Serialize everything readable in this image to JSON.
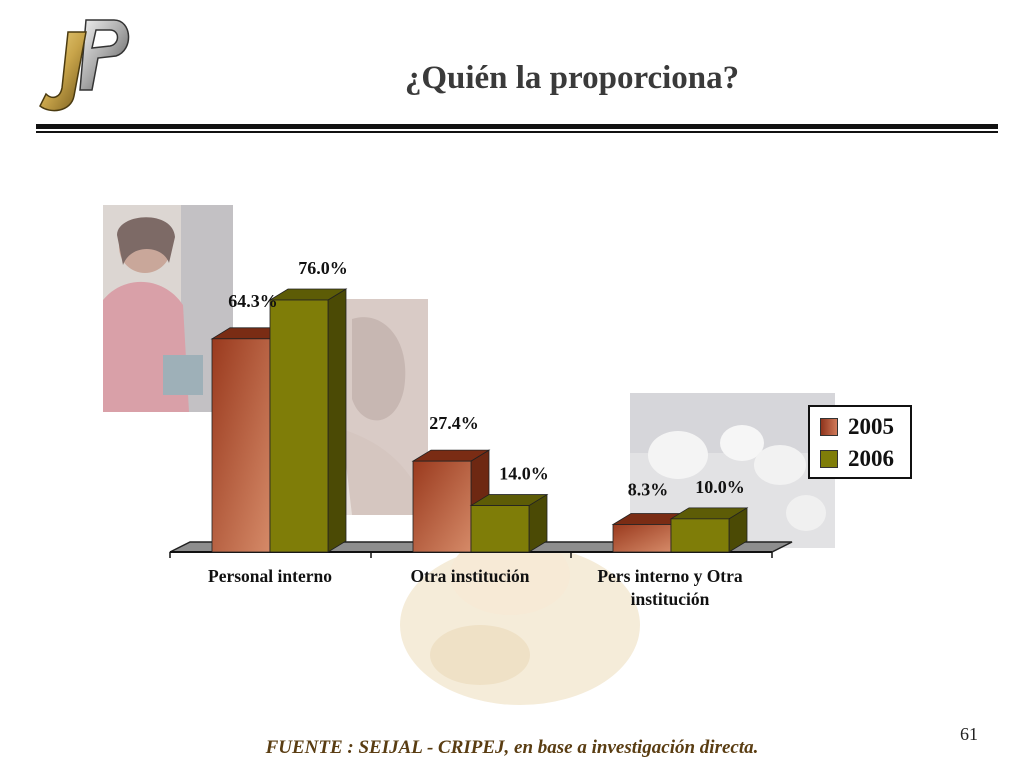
{
  "slide": {
    "title": "¿Quién la proporciona?",
    "source": "FUENTE : SEIJAL - CRIPEJ, en base a investigación directa.",
    "page_number": "61",
    "colors": {
      "series_2005": "#b5532f",
      "series_2006": "#7f7d08",
      "title": "#3a3a3a",
      "source": "#5a3d12",
      "logo_gold": "#c8a44a",
      "logo_silver": "#c0c0c0"
    }
  },
  "chart_data": {
    "type": "bar",
    "style": "3d-clustered",
    "categories": [
      "Personal interno",
      "Otra institución",
      "Pers interno y Otra institución"
    ],
    "series": [
      {
        "name": "2005",
        "values": [
          64.3,
          27.4,
          8.3
        ],
        "labels": [
          "64.3%",
          "27.4%",
          "8.3%"
        ],
        "color": "#b5532f"
      },
      {
        "name": "2006",
        "values": [
          76.0,
          14.0,
          10.0
        ],
        "labels": [
          "76.0%",
          "14.0%",
          "10.0%"
        ],
        "color": "#7f7d08"
      }
    ],
    "ylim": [
      0,
      80
    ],
    "grid": false,
    "legend_position": "right"
  }
}
